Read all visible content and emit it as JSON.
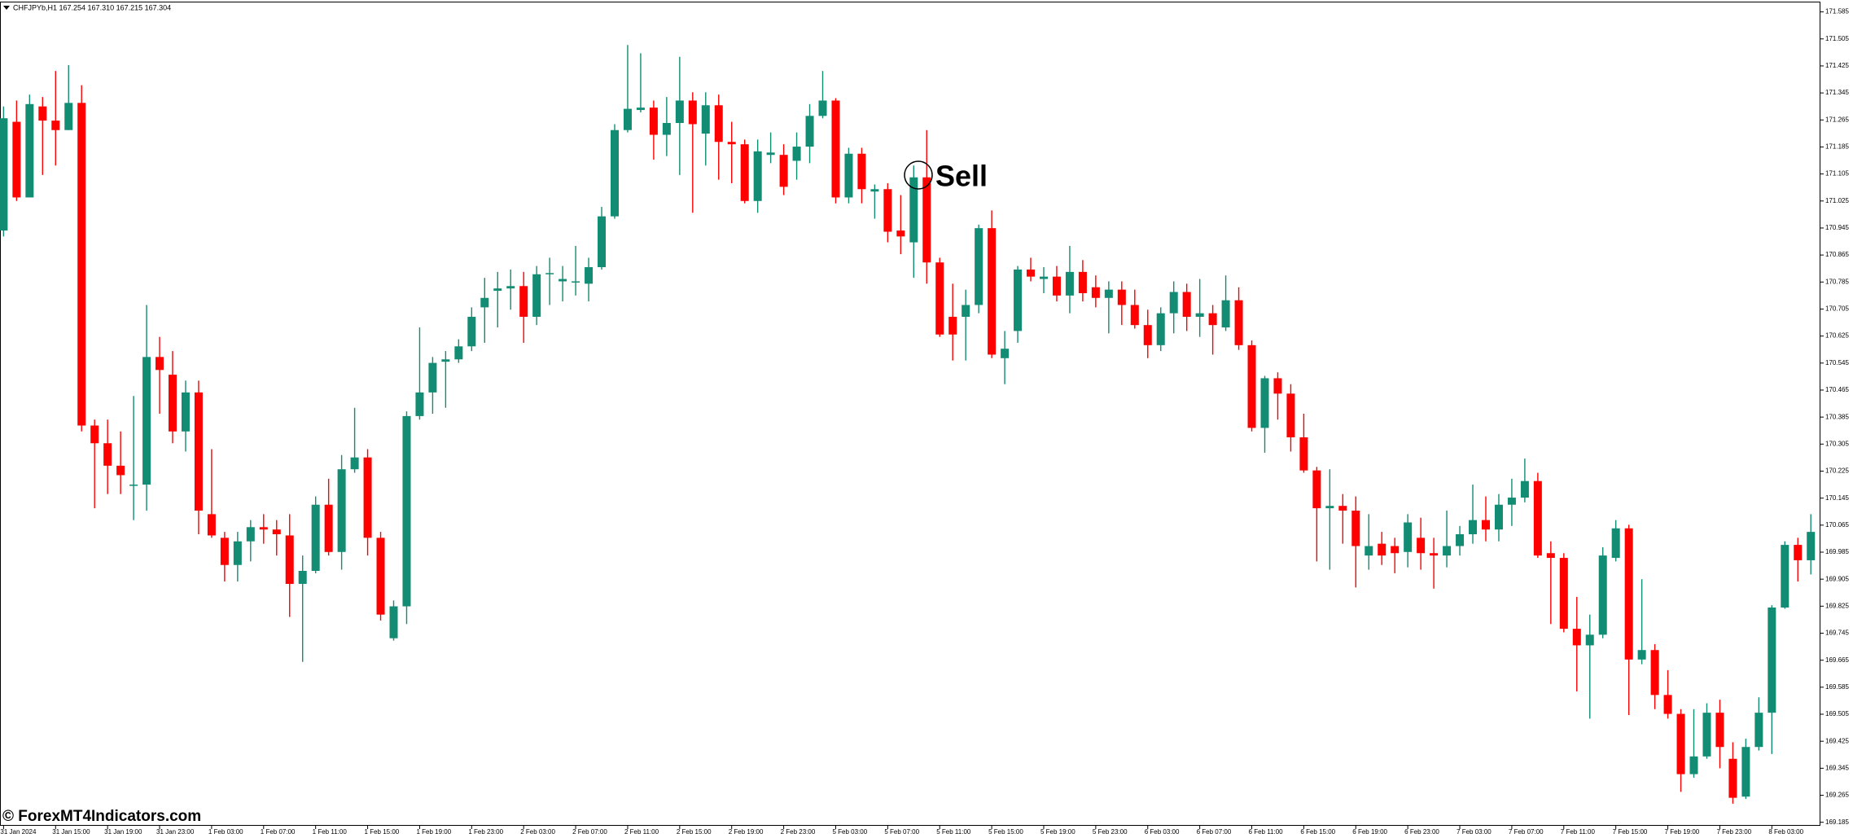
{
  "chart_data": {
    "type": "candlestick",
    "header": "CHFJPYb,H1  167.254 167.310 167.215 167.304",
    "annotation": "Sell",
    "watermark": "© ForexMT4Indicators.com",
    "up_color": "#138c74",
    "down_color": "#ff0000",
    "ylim": [
      169.177,
      171.613
    ],
    "yticks": [
      171.585,
      171.505,
      171.425,
      171.345,
      171.265,
      171.185,
      171.105,
      171.025,
      170.945,
      170.865,
      170.785,
      170.705,
      170.625,
      170.545,
      170.465,
      170.385,
      170.305,
      170.225,
      170.145,
      170.065,
      169.985,
      169.905,
      169.825,
      169.745,
      169.665,
      169.585,
      169.505,
      169.425,
      169.345,
      169.265,
      169.185
    ],
    "categories": [
      "31 Jan 2024",
      null,
      null,
      null,
      "31 Jan 15:00",
      null,
      null,
      null,
      "31 Jan 19:00",
      null,
      null,
      null,
      "31 Jan 23:00",
      null,
      null,
      null,
      "1 Feb 03:00",
      null,
      null,
      null,
      "1 Feb 07:00",
      null,
      null,
      null,
      "1 Feb 11:00",
      null,
      null,
      null,
      "1 Feb 15:00",
      null,
      null,
      null,
      "1 Feb 19:00",
      null,
      null,
      null,
      "1 Feb 23:00",
      null,
      null,
      null,
      "2 Feb 03:00",
      null,
      null,
      null,
      "2 Feb 07:00",
      null,
      null,
      null,
      "2 Feb 11:00",
      null,
      null,
      null,
      "2 Feb 15:00",
      null,
      null,
      null,
      "2 Feb 19:00",
      null,
      null,
      null,
      "2 Feb 23:00",
      null,
      null,
      null,
      "5 Feb 03:00",
      null,
      null,
      null,
      "5 Feb 07:00",
      null,
      null,
      null,
      "5 Feb 11:00",
      null,
      null,
      null,
      "5 Feb 15:00",
      null,
      null,
      null,
      "5 Feb 19:00",
      null,
      null,
      null,
      "5 Feb 23:00",
      null,
      null,
      null,
      "6 Feb 03:00",
      null,
      null,
      null,
      "6 Feb 07:00",
      null,
      null,
      null,
      "6 Feb 11:00",
      null,
      null,
      null,
      "6 Feb 15:00",
      null,
      null,
      null,
      "6 Feb 19:00",
      null,
      null,
      null,
      "6 Feb 23:00",
      null,
      null,
      null,
      "7 Feb 03:00",
      null,
      null,
      null,
      "7 Feb 07:00",
      null,
      null,
      null,
      "7 Feb 11:00",
      null,
      null,
      null,
      "7 Feb 15:00",
      null,
      null,
      null,
      "7 Feb 19:00",
      null,
      null,
      null,
      "7 Feb 23:00",
      null,
      null,
      null,
      "8 Feb 03:00",
      null,
      null,
      null
    ],
    "open": [
      170.9375,
      171.2595,
      171.0355,
      171.305,
      171.263,
      171.235,
      171.3155,
      170.36,
      170.3075,
      170.241,
      170.1815,
      170.185,
      170.563,
      170.5105,
      170.3425,
      170.458,
      170.0975,
      170.0275,
      169.947,
      170.017,
      170.059,
      170.052,
      170.0345,
      169.891,
      169.9295,
      170.1255,
      169.9855,
      170.2305,
      170.2655,
      170.0275,
      169.73,
      169.8245,
      170.388,
      170.458,
      170.549,
      170.556,
      170.5945,
      170.71,
      170.759,
      170.766,
      170.773,
      170.682,
      170.808,
      170.787,
      170.7835,
      170.78,
      170.829,
      170.9795,
      171.235,
      171.2945,
      171.3015,
      171.221,
      171.256,
      171.3225,
      171.2245,
      171.3085,
      171.2,
      171.193,
      171.025,
      171.1615,
      171.1615,
      171.144,
      171.186,
      171.277,
      171.3225,
      171.0355,
      171.165,
      171.053,
      171.06,
      170.9375,
      170.9025,
      171.095,
      170.843,
      170.682,
      170.682,
      170.717,
      170.9445,
      170.5595,
      170.64,
      170.822,
      170.794,
      170.801,
      170.745,
      170.815,
      170.7695,
      170.738,
      170.7625,
      170.717,
      170.6575,
      170.598,
      170.6925,
      170.7555,
      170.682,
      170.6925,
      170.6505,
      170.731,
      170.598,
      170.353,
      170.5,
      170.4545,
      170.325,
      170.227,
      170.115,
      170.122,
      170.108,
      169.975,
      170.01,
      170.003,
      169.9855,
      170.0275,
      169.982,
      169.975,
      170.003,
      170.038,
      170.08,
      170.052,
      170.1255,
      170.1465,
      170.1955,
      169.982,
      169.968,
      169.758,
      169.709,
      169.7405,
      169.968,
      170.0555,
      169.667,
      169.695,
      169.562,
      169.506,
      169.3275,
      169.38,
      169.5095,
      169.373,
      169.261,
      169.408,
      169.5095,
      169.821,
      170.0065,
      169.961
    ],
    "high": [
      171.305,
      171.3225,
      171.34,
      171.333,
      171.41,
      171.4275,
      171.368,
      170.3775,
      170.3775,
      170.3425,
      170.4475,
      170.717,
      170.6225,
      170.5805,
      170.493,
      170.493,
      170.29,
      170.045,
      170.045,
      170.08,
      170.0975,
      170.08,
      170.0975,
      169.975,
      170.15,
      170.2025,
      170.2725,
      170.4125,
      170.29,
      170.045,
      169.842,
      170.402,
      170.6505,
      170.563,
      170.5805,
      170.6155,
      170.71,
      170.7975,
      170.815,
      170.822,
      170.815,
      170.8325,
      170.857,
      170.8325,
      170.892,
      170.857,
      171.0075,
      171.2525,
      171.487,
      171.4625,
      171.3225,
      171.333,
      171.452,
      171.347,
      171.347,
      171.34,
      171.2595,
      171.207,
      171.207,
      171.228,
      171.193,
      171.228,
      171.312,
      171.41,
      171.3295,
      171.1825,
      171.1825,
      171.074,
      171.0775,
      171.0425,
      171.13,
      171.235,
      170.857,
      170.78,
      170.7625,
      170.955,
      170.997,
      170.64,
      170.8325,
      170.857,
      170.829,
      170.8325,
      170.892,
      170.85,
      170.8045,
      170.787,
      170.787,
      170.7625,
      170.703,
      170.71,
      170.787,
      170.78,
      170.794,
      170.717,
      170.8045,
      170.7695,
      170.612,
      170.507,
      170.5175,
      170.4825,
      170.395,
      170.2375,
      170.2305,
      170.157,
      170.15,
      170.0975,
      170.045,
      170.0275,
      170.0975,
      170.087,
      170.0275,
      170.108,
      170.0625,
      170.185,
      170.15,
      170.157,
      170.2025,
      170.262,
      170.22,
      170.017,
      169.982,
      169.8525,
      169.8,
      169.9995,
      170.08,
      170.066,
      169.905,
      169.7125,
      169.6355,
      169.52,
      169.52,
      169.5375,
      169.548,
      169.422,
      169.4325,
      169.555,
      169.828,
      170.017,
      170.0275,
      170.0975
    ],
    "low": [
      170.92,
      171.025,
      171.0355,
      171.102,
      171.13,
      171.235,
      170.3425,
      170.115,
      170.157,
      170.157,
      170.08,
      170.108,
      170.395,
      170.3075,
      170.283,
      170.038,
      170.0275,
      169.898,
      169.898,
      169.9575,
      170.01,
      169.975,
      169.793,
      169.66,
      169.9225,
      169.975,
      169.933,
      170.22,
      169.975,
      169.7825,
      169.723,
      169.772,
      170.3775,
      170.395,
      170.4125,
      170.5455,
      170.5805,
      170.605,
      170.6505,
      170.703,
      170.605,
      170.6575,
      170.717,
      170.7275,
      170.745,
      170.7275,
      170.822,
      170.9725,
      171.228,
      171.2875,
      171.1475,
      171.158,
      171.102,
      170.99,
      171.13,
      171.088,
      171.0775,
      171.018,
      170.99,
      171.137,
      171.0425,
      171.088,
      171.137,
      171.27,
      171.018,
      171.018,
      171.018,
      170.9725,
      170.9025,
      170.8675,
      170.7975,
      170.78,
      170.6225,
      170.5525,
      170.5525,
      170.6925,
      170.5595,
      170.4825,
      170.605,
      170.787,
      170.752,
      170.7275,
      170.6925,
      170.7275,
      170.71,
      170.633,
      170.6575,
      170.647,
      170.5595,
      170.5805,
      170.633,
      170.64,
      170.6225,
      170.57,
      170.64,
      170.584,
      170.3425,
      170.2795,
      170.3775,
      170.283,
      170.22,
      169.9575,
      169.933,
      170.01,
      169.8805,
      169.933,
      169.947,
      169.9225,
      169.94,
      169.933,
      169.877,
      169.94,
      169.975,
      170.01,
      170.017,
      170.017,
      170.0625,
      170.1325,
      169.968,
      169.772,
      169.7475,
      169.5725,
      169.492,
      169.73,
      169.9575,
      169.5025,
      169.653,
      169.52,
      169.492,
      169.275,
      169.317,
      169.373,
      169.345,
      169.24,
      169.254,
      169.3975,
      169.387,
      169.8175,
      169.898,
      169.919
    ],
    "close": [
      171.27,
      171.0355,
      171.312,
      171.263,
      171.235,
      171.3155,
      170.36,
      170.3075,
      170.241,
      170.213,
      170.185,
      170.563,
      170.5245,
      170.3425,
      170.458,
      170.108,
      170.0345,
      169.947,
      170.017,
      170.059,
      170.052,
      170.038,
      169.891,
      169.9295,
      170.1255,
      169.9855,
      170.2305,
      170.2655,
      170.0275,
      169.8,
      169.8245,
      170.388,
      170.458,
      170.5455,
      170.556,
      170.5945,
      170.682,
      170.738,
      170.766,
      170.773,
      170.682,
      170.808,
      170.8115,
      170.794,
      170.787,
      170.829,
      170.9795,
      171.235,
      171.298,
      171.3015,
      171.221,
      171.256,
      171.3225,
      171.2525,
      171.3085,
      171.2,
      171.193,
      171.025,
      171.172,
      171.1685,
      171.067,
      171.186,
      171.277,
      171.3225,
      171.0355,
      171.165,
      171.06,
      171.06,
      170.934,
      170.92,
      171.095,
      170.843,
      170.6295,
      170.6295,
      170.717,
      170.9445,
      170.57,
      170.5875,
      170.822,
      170.801,
      170.801,
      170.745,
      170.815,
      170.752,
      170.738,
      170.7625,
      170.717,
      170.6575,
      170.598,
      170.6925,
      170.7555,
      170.682,
      170.6925,
      170.6575,
      170.731,
      170.598,
      170.353,
      170.5,
      170.4545,
      170.325,
      170.227,
      170.115,
      170.122,
      170.108,
      170.003,
      170.003,
      169.975,
      169.982,
      170.073,
      169.982,
      169.975,
      170.003,
      170.038,
      170.08,
      170.052,
      170.1255,
      170.1465,
      170.1955,
      169.975,
      169.968,
      169.758,
      169.709,
      169.7405,
      169.975,
      170.0555,
      169.667,
      169.695,
      169.562,
      169.506,
      169.3275,
      169.38,
      169.5095,
      169.408,
      169.2575,
      169.408,
      169.5095,
      169.821,
      170.0065,
      169.961,
      170.045
    ]
  }
}
